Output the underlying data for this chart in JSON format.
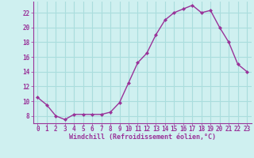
{
  "x": [
    0,
    1,
    2,
    3,
    4,
    5,
    6,
    7,
    8,
    9,
    10,
    11,
    12,
    13,
    14,
    15,
    16,
    17,
    18,
    19,
    20,
    21,
    22,
    23
  ],
  "y": [
    10.5,
    9.5,
    8.0,
    7.5,
    8.2,
    8.2,
    8.2,
    8.2,
    8.5,
    9.8,
    12.5,
    15.2,
    16.5,
    19.0,
    21.0,
    22.0,
    22.5,
    23.0,
    22.0,
    22.3,
    20.0,
    18.0,
    15.0,
    14.0
  ],
  "line_color": "#993399",
  "marker": "D",
  "marker_size": 2.0,
  "bg_color": "#cff0f0",
  "grid_color": "#aadddd",
  "xlabel": "Windchill (Refroidissement éolien,°C)",
  "xlabel_color": "#993399",
  "tick_color": "#993399",
  "ylim": [
    7,
    23.5
  ],
  "xlim": [
    -0.5,
    23.5
  ],
  "yticks": [
    8,
    10,
    12,
    14,
    16,
    18,
    20,
    22
  ],
  "xticks": [
    0,
    1,
    2,
    3,
    4,
    5,
    6,
    7,
    8,
    9,
    10,
    11,
    12,
    13,
    14,
    15,
    16,
    17,
    18,
    19,
    20,
    21,
    22,
    23
  ],
  "font_family": "monospace",
  "tick_fontsize": 5.5,
  "xlabel_fontsize": 6.0,
  "linewidth": 1.0
}
